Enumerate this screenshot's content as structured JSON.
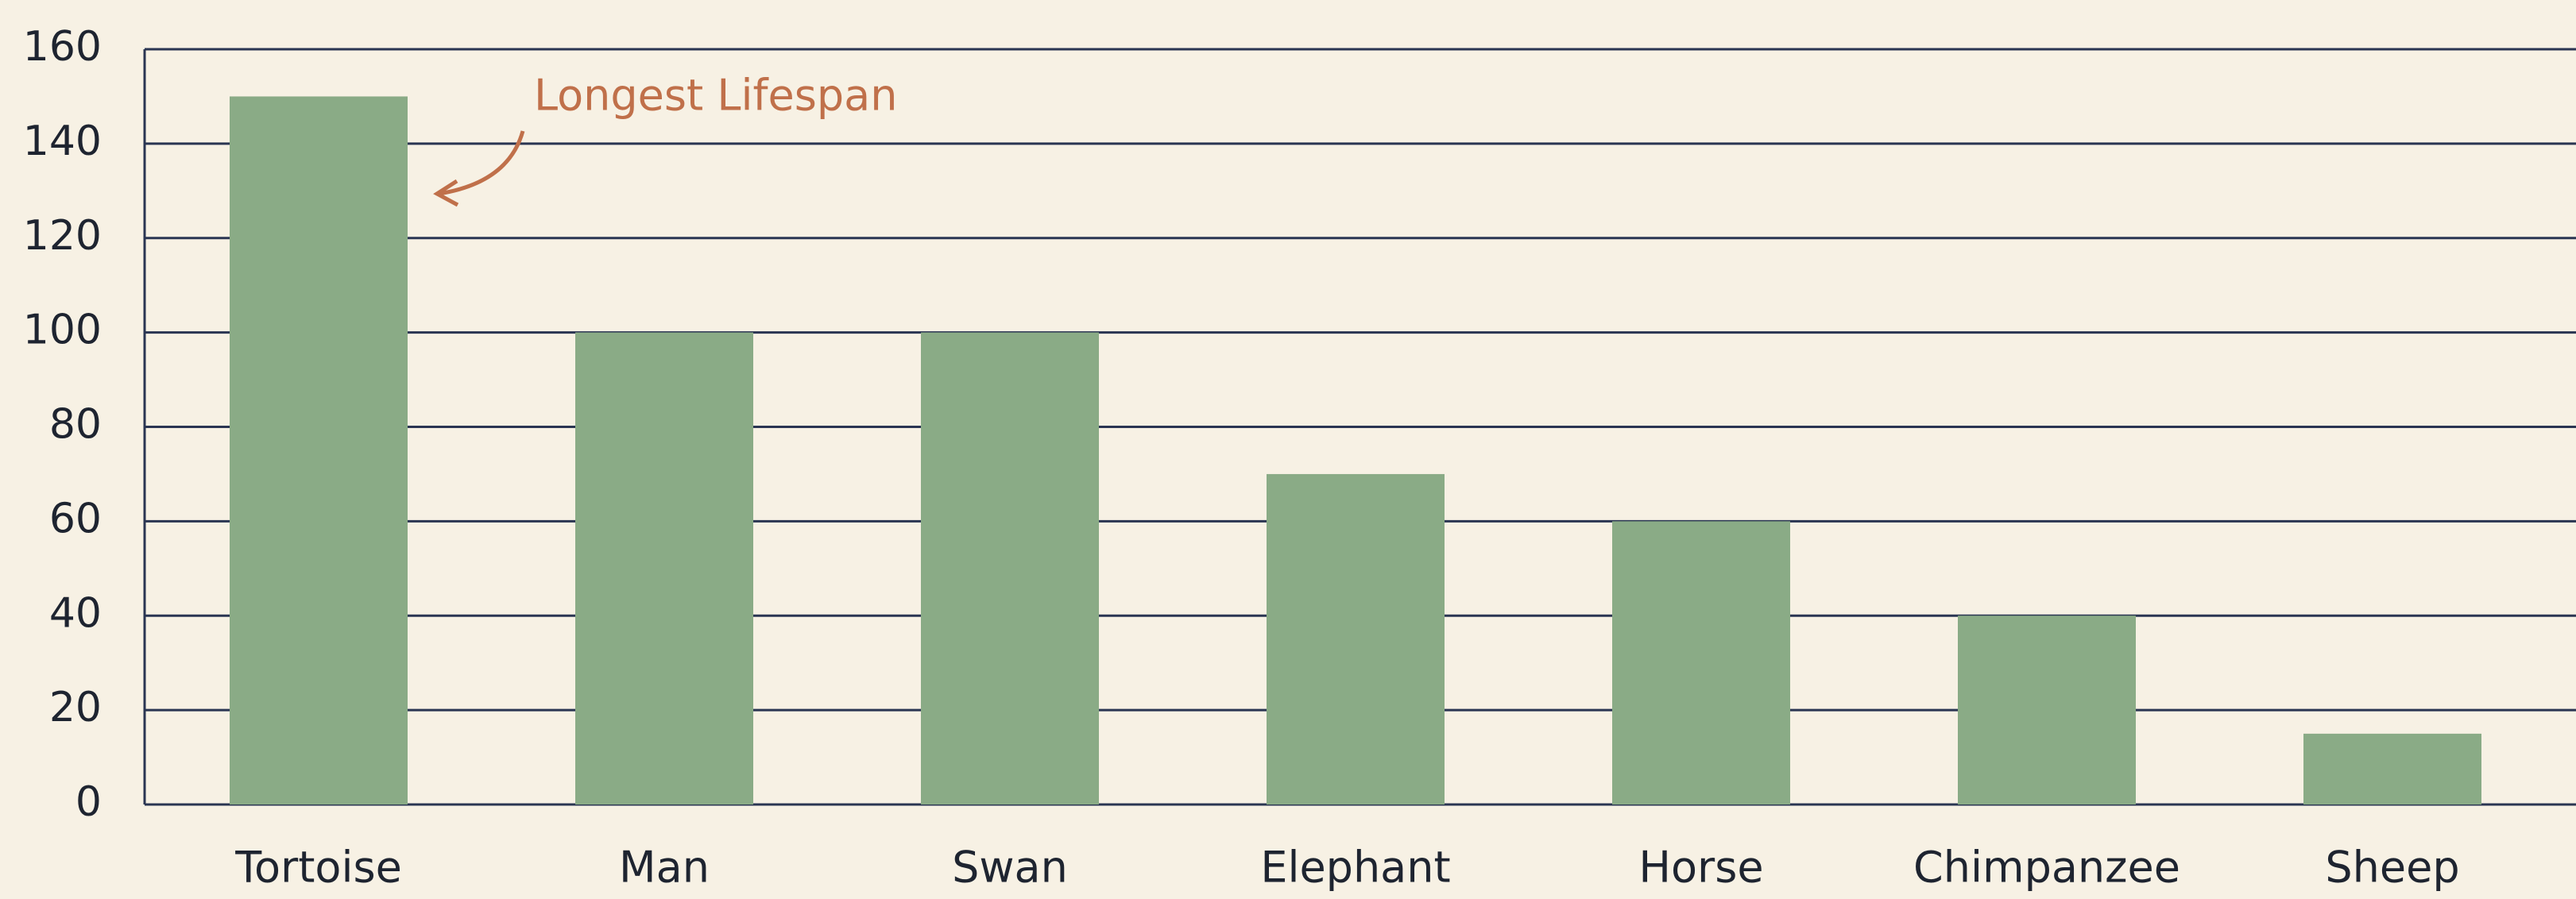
{
  "chart_data": {
    "type": "bar",
    "categories": [
      "Tortoise",
      "Man",
      "Swan",
      "Elephant",
      "Horse",
      "Chimpanzee",
      "Sheep"
    ],
    "values": [
      150,
      100,
      100,
      70,
      60,
      40,
      15
    ],
    "color": "#8aab86",
    "ylim": [
      0,
      160
    ],
    "yticks": [
      0,
      20,
      40,
      60,
      80,
      100,
      120,
      140,
      160
    ],
    "grid": true,
    "annotation": "Longest Lifespan"
  }
}
